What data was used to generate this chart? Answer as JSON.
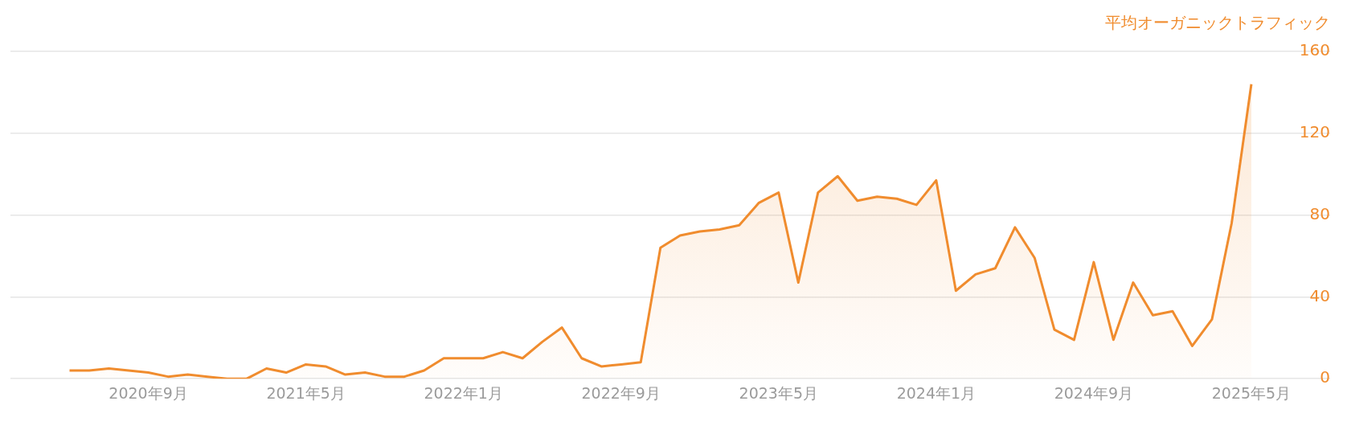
{
  "chart_data": {
    "type": "area",
    "ylabel": "平均オーガニックトラフィック",
    "x": [
      "2020-05",
      "2020-06",
      "2020-07",
      "2020-08",
      "2020-09",
      "2020-10",
      "2020-11",
      "2020-12",
      "2021-01",
      "2021-02",
      "2021-03",
      "2021-04",
      "2021-05",
      "2021-06",
      "2021-07",
      "2021-08",
      "2021-09",
      "2021-10",
      "2021-11",
      "2021-12",
      "2022-01",
      "2022-02",
      "2022-03",
      "2022-04",
      "2022-05",
      "2022-06",
      "2022-07",
      "2022-08",
      "2022-09",
      "2022-10",
      "2022-11",
      "2022-12",
      "2023-01",
      "2023-02",
      "2023-03",
      "2023-04",
      "2023-05",
      "2023-06",
      "2023-07",
      "2023-08",
      "2023-09",
      "2023-10",
      "2023-11",
      "2023-12",
      "2024-01",
      "2024-02",
      "2024-03",
      "2024-04",
      "2024-05",
      "2024-06",
      "2024-07",
      "2024-08",
      "2024-09",
      "2024-10",
      "2024-11",
      "2024-12",
      "2025-01",
      "2025-02",
      "2025-03",
      "2025-04",
      "2025-05"
    ],
    "values": [
      4,
      4,
      5,
      4,
      3,
      1,
      2,
      1,
      0,
      0,
      5,
      3,
      7,
      6,
      2,
      3,
      1,
      1,
      4,
      10,
      10,
      10,
      13,
      10,
      18,
      25,
      10,
      6,
      7,
      8,
      64,
      70,
      72,
      73,
      75,
      86,
      91,
      47,
      91,
      99,
      87,
      89,
      88,
      85,
      97,
      43,
      51,
      54,
      74,
      59,
      24,
      19,
      57,
      19,
      47,
      31,
      33,
      16,
      29,
      76,
      144
    ],
    "color": "#f08c2e",
    "xlim": [
      "2020-02",
      "2025-09"
    ],
    "xticks": [
      {
        "value": "2020-09",
        "label": "2020年9月"
      },
      {
        "value": "2021-05",
        "label": "2021年5月"
      },
      {
        "value": "2022-01",
        "label": "2022年1月"
      },
      {
        "value": "2022-09",
        "label": "2022年9月"
      },
      {
        "value": "2023-05",
        "label": "2023年5月"
      },
      {
        "value": "2024-01",
        "label": "2024年1月"
      },
      {
        "value": "2024-09",
        "label": "2024年9月"
      },
      {
        "value": "2025-05",
        "label": "2025年5月"
      }
    ],
    "ylim": [
      0,
      160
    ],
    "yticks": [
      0,
      40,
      80,
      120,
      160
    ],
    "grid": "y"
  }
}
